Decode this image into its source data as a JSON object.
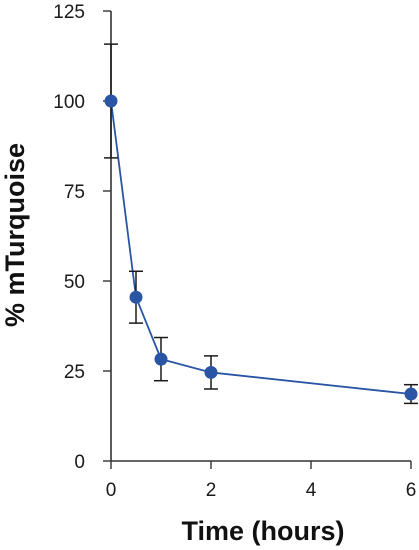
{
  "chart_data": {
    "type": "line",
    "xlabel": "Time (hours)",
    "ylabel": "% mTurquoise",
    "xlim": [
      0,
      6
    ],
    "ylim": [
      0,
      125
    ],
    "x_ticks": [
      0,
      2,
      4,
      6
    ],
    "y_ticks": [
      0,
      25,
      50,
      75,
      100,
      125
    ],
    "grid": false,
    "series": [
      {
        "x": [
          0,
          0.5,
          1,
          2,
          6
        ],
        "values": [
          100,
          45.5,
          28.3,
          24.6,
          18.6
        ],
        "error": [
          15.8,
          7.2,
          6.0,
          4.6,
          2.6
        ],
        "color": "#2a55a5"
      }
    ]
  }
}
